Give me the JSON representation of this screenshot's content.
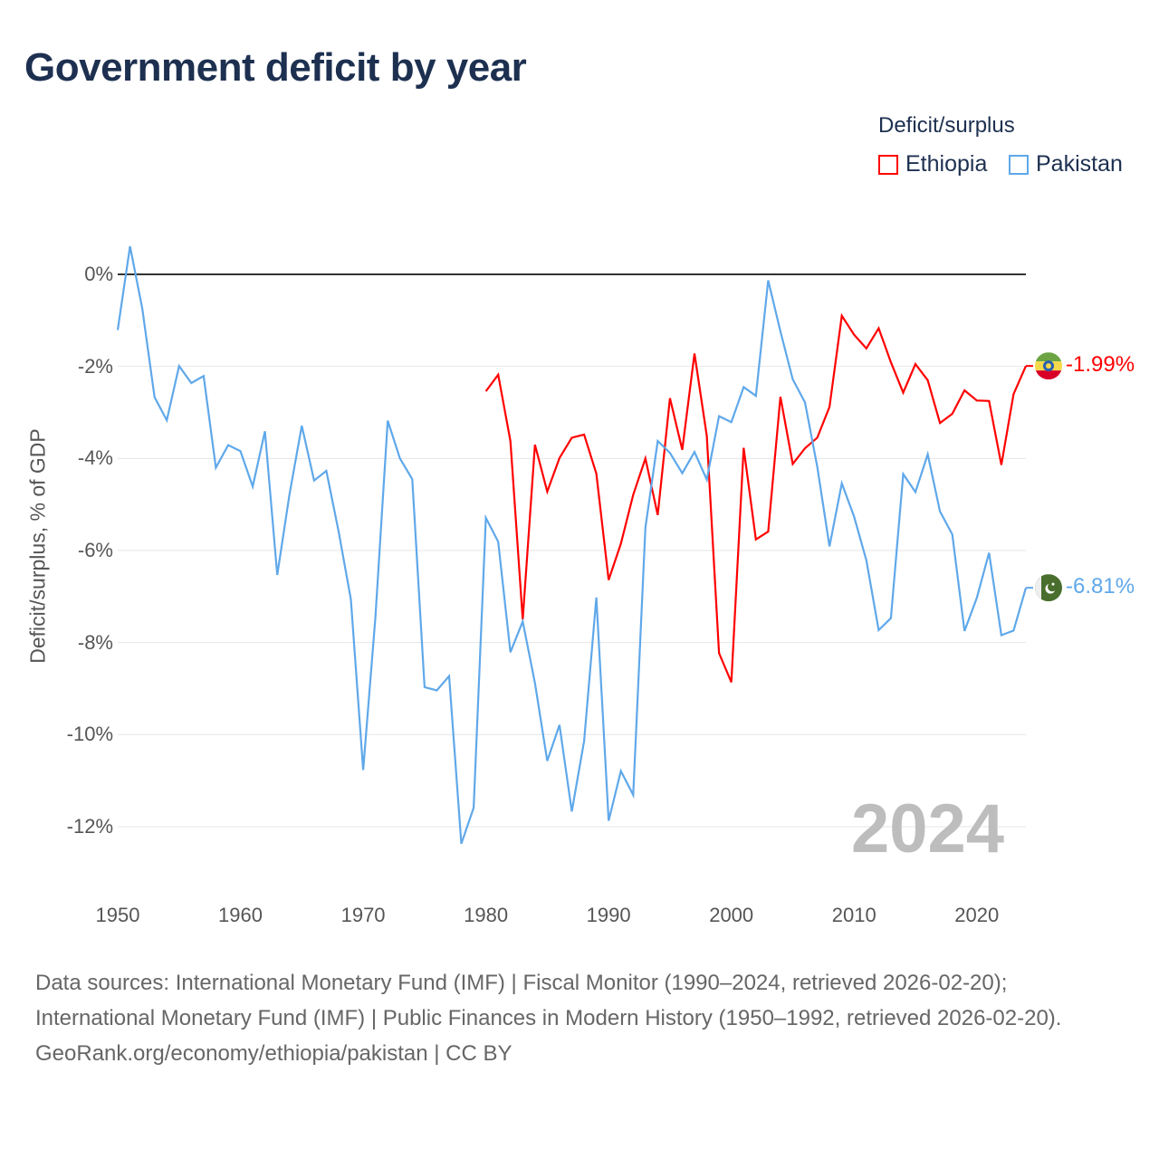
{
  "title": "Government deficit by year",
  "legend": {
    "title": "Deficit/surplus",
    "items": [
      "Ethiopia",
      "Pakistan"
    ]
  },
  "end_labels": {
    "ethiopia": "-1.99%",
    "pakistan": "-6.81%"
  },
  "current_year": "2024",
  "footer": {
    "line1": "Data sources: International Monetary Fund (IMF) | Fiscal Monitor (1990–2024, retrieved 2026-02-20); International Monetary Fund (IMF) | Public Finances in Modern History (1950–1992, retrieved 2026-02-20).",
    "line2": "GeoRank.org/economy/ethiopia/pakistan | CC BY"
  },
  "colors": {
    "ethiopia": "#ff0000",
    "pakistan": "#5fa8ea"
  },
  "chart_data": {
    "type": "line",
    "title": "Government deficit by year",
    "xlabel": "",
    "ylabel": "Deficit/surplus, % of GDP",
    "xlim": [
      1950,
      2024
    ],
    "ylim": [
      -12,
      0
    ],
    "xticks": [
      "1950",
      "1960",
      "1970",
      "1980",
      "1990",
      "2000",
      "2010",
      "2020"
    ],
    "yticks": [
      "0%",
      "-2%",
      "-4%",
      "-6%",
      "-8%",
      "-10%",
      "-12%"
    ],
    "series": [
      {
        "name": "Ethiopia",
        "start_year": 1980,
        "values": [
          -2.54,
          -2.18,
          -3.62,
          -7.5,
          -3.7,
          -4.72,
          -3.99,
          -3.55,
          -3.48,
          -4.33,
          -6.64,
          -5.85,
          -4.79,
          -4.0,
          -5.23,
          -2.69,
          -3.81,
          -1.72,
          -3.51,
          -8.23,
          -8.86,
          -3.77,
          -5.76,
          -5.59,
          -2.66,
          -4.12,
          -3.78,
          -3.55,
          -2.88,
          -0.9,
          -1.31,
          -1.61,
          -1.17,
          -1.91,
          -2.57,
          -1.95,
          -2.3,
          -3.23,
          -3.03,
          -2.52,
          -2.74,
          -2.75,
          -4.14,
          -2.6,
          -1.99
        ]
      },
      {
        "name": "Pakistan",
        "start_year": 1950,
        "values": [
          -1.21,
          0.61,
          -0.74,
          -2.67,
          -3.17,
          -1.99,
          -2.36,
          -2.21,
          -4.2,
          -3.71,
          -3.84,
          -4.61,
          -3.41,
          -6.53,
          -4.77,
          -3.29,
          -4.48,
          -4.27,
          -5.59,
          -7.06,
          -10.77,
          -7.45,
          -3.18,
          -4.0,
          -4.45,
          -8.97,
          -9.04,
          -8.73,
          -12.37,
          -11.59,
          -5.29,
          -5.81,
          -8.21,
          -7.54,
          -8.88,
          -10.57,
          -9.79,
          -11.67,
          -10.14,
          -7.02,
          -11.87,
          -10.79,
          -11.31,
          -5.5,
          -3.62,
          -3.88,
          -4.32,
          -3.86,
          -4.46,
          -3.08,
          -3.21,
          -2.45,
          -2.64,
          -0.13,
          -1.24,
          -2.28,
          -2.78,
          -4.18,
          -5.91,
          -4.54,
          -5.26,
          -6.21,
          -7.73,
          -7.47,
          -4.34,
          -4.73,
          -3.91,
          -5.15,
          -5.65,
          -7.75,
          -7.03,
          -6.05,
          -7.84,
          -7.74,
          -6.81
        ]
      }
    ]
  }
}
